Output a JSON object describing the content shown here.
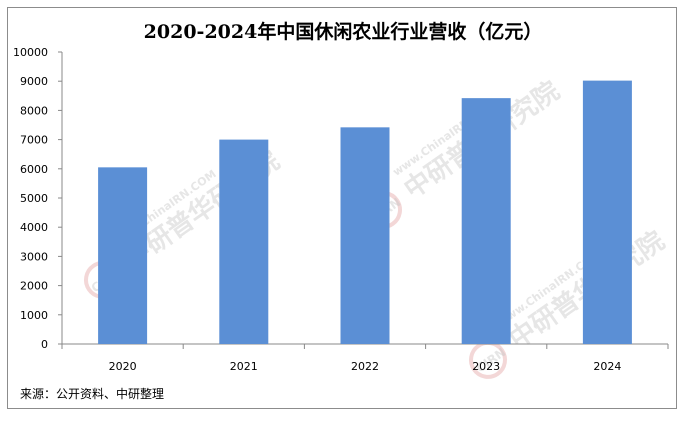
{
  "chart_data": {
    "type": "bar",
    "title": "2020-2024年中国休闲农业行业营收（亿元）",
    "categories": [
      "2020",
      "2021",
      "2022",
      "2023",
      "2024"
    ],
    "values": [
      6050,
      7000,
      7420,
      8420,
      9020
    ],
    "ylim": [
      0,
      10000
    ],
    "yticks": [
      0,
      1000,
      2000,
      3000,
      4000,
      5000,
      6000,
      7000,
      8000,
      9000,
      10000
    ],
    "xlabel": "",
    "ylabel": "",
    "grid": false,
    "legend": "none",
    "bar_color": "#5b8fd5"
  },
  "source": "来源：公开资料、中研整理",
  "watermark": {
    "url": "www.ChinaIRN.COM",
    "brand": "中研普华研究院",
    "logo": "CIRN"
  }
}
